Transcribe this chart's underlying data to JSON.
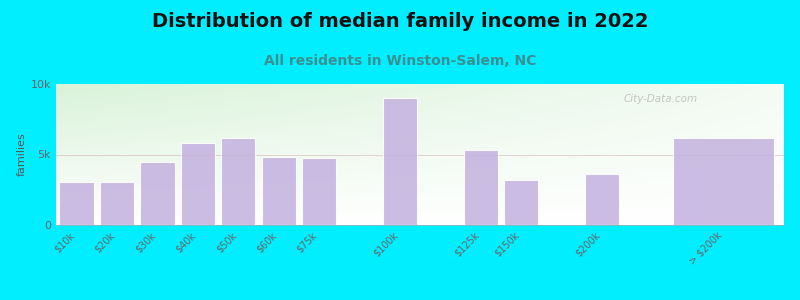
{
  "title": "Distribution of median family income in 2022",
  "subtitle": "All residents in Winston-Salem, NC",
  "ylabel": "families",
  "categories": [
    "$10k",
    "$20k",
    "$30k",
    "$40k",
    "$50k",
    "$60k",
    "$75k",
    "$100k",
    "$125k",
    "$150k",
    "$200k",
    "> $200k"
  ],
  "values": [
    3050,
    3050,
    4500,
    5800,
    6200,
    4850,
    4750,
    9000,
    5300,
    3200,
    3650,
    6200
  ],
  "bar_color": "#c5b3e0",
  "background_outer": "#00eeff",
  "background_inner_top_left": "#d8f0d8",
  "background_inner_top_right": "#e8f0f0",
  "background_inner_bottom": "#ffffff",
  "title_color": "#111111",
  "subtitle_color": "#3a9090",
  "ylabel_color": "#555555",
  "tick_color": "#666666",
  "ylim": [
    0,
    10000
  ],
  "ytick_labels": [
    "0",
    "5k",
    "10k"
  ],
  "title_fontsize": 14,
  "subtitle_fontsize": 10,
  "ylabel_fontsize": 8,
  "watermark": "City-Data.com",
  "x_positions": [
    0,
    1,
    2,
    3,
    4,
    5,
    6,
    8,
    10,
    11,
    13,
    16
  ],
  "bar_widths": [
    0.85,
    0.85,
    0.85,
    0.85,
    0.85,
    0.85,
    0.85,
    0.85,
    0.85,
    0.85,
    0.85,
    2.5
  ]
}
